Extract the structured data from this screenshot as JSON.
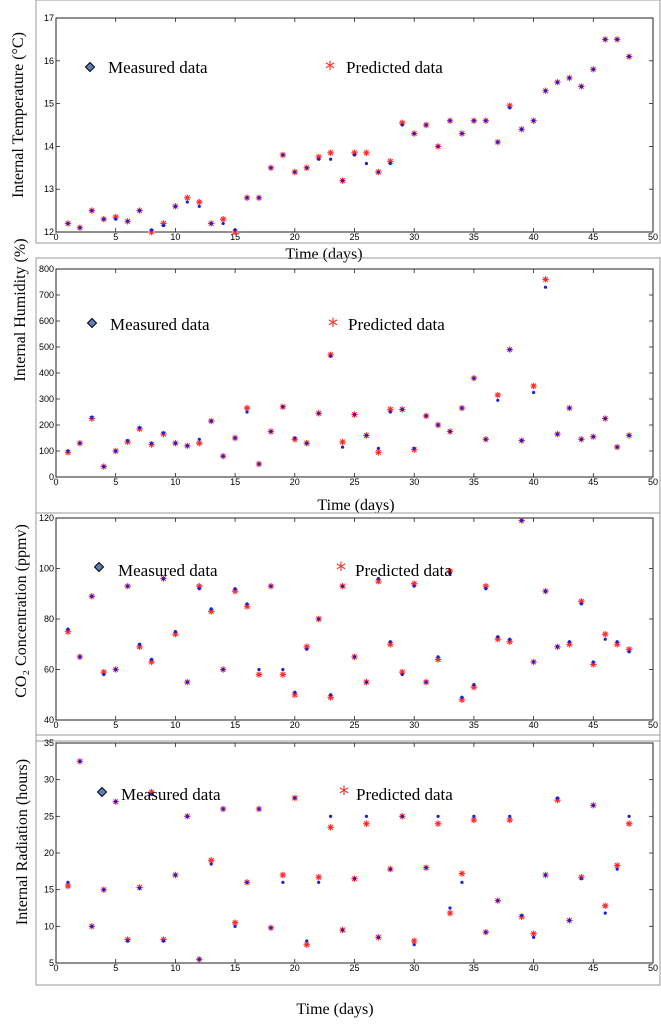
{
  "legend": {
    "measured_label": "Measured data",
    "predicted_label": "Predicted data",
    "measured_color": "#1f1fd6",
    "measured_marker_fill": "#5b7fb6",
    "predicted_color": "#ff2a2a"
  },
  "chart_data": [
    {
      "type": "scatter",
      "ylabel": "Internal Temperature (°C)",
      "xlabel": "Time (days)",
      "xlim": [
        0,
        50
      ],
      "ylim": [
        12,
        17
      ],
      "xticks": [
        0,
        5,
        10,
        15,
        20,
        25,
        30,
        35,
        40,
        45,
        50
      ],
      "yticks": [
        12,
        13,
        14,
        15,
        16,
        17
      ],
      "x": [
        1,
        2,
        3,
        4,
        5,
        6,
        7,
        8,
        9,
        10,
        11,
        12,
        13,
        14,
        15,
        16,
        17,
        18,
        19,
        20,
        21,
        22,
        23,
        24,
        25,
        26,
        27,
        28,
        29,
        30,
        31,
        32,
        33,
        34,
        35,
        36,
        37,
        38,
        39,
        40,
        41,
        42,
        43,
        44,
        45,
        46,
        47,
        48
      ],
      "series": [
        {
          "name": "Measured data",
          "values": [
            12.2,
            12.1,
            12.5,
            12.3,
            12.3,
            12.25,
            12.5,
            12.05,
            12.15,
            12.6,
            12.7,
            12.6,
            12.2,
            12.2,
            12.05,
            12.8,
            12.8,
            13.5,
            13.8,
            13.4,
            13.5,
            13.7,
            13.7,
            13.2,
            13.8,
            13.6,
            13.4,
            13.6,
            14.5,
            14.3,
            14.5,
            14.0,
            14.6,
            14.3,
            14.6,
            14.6,
            14.1,
            14.9,
            14.4,
            14.6,
            15.3,
            15.5,
            15.6,
            15.4,
            15.8,
            16.5,
            16.5,
            16.1
          ]
        },
        {
          "name": "Predicted data",
          "values": [
            12.2,
            12.1,
            12.5,
            12.3,
            12.35,
            12.25,
            12.5,
            12.0,
            12.2,
            12.6,
            12.8,
            12.7,
            12.2,
            12.3,
            12.0,
            12.8,
            12.8,
            13.5,
            13.8,
            13.4,
            13.5,
            13.75,
            13.85,
            13.2,
            13.85,
            13.85,
            13.4,
            13.65,
            14.55,
            14.3,
            14.5,
            14.0,
            14.6,
            14.3,
            14.6,
            14.6,
            14.1,
            14.95,
            14.4,
            14.6,
            15.3,
            15.5,
            15.6,
            15.4,
            15.8,
            16.5,
            16.5,
            16.1
          ]
        }
      ]
    },
    {
      "type": "scatter",
      "ylabel": "Internal Humidity (%)",
      "xlabel": "Time (days)",
      "xlim": [
        0,
        50
      ],
      "ylim": [
        0,
        800
      ],
      "xticks": [
        0,
        5,
        10,
        15,
        20,
        25,
        30,
        35,
        40,
        45,
        50
      ],
      "yticks": [
        0,
        100,
        200,
        300,
        400,
        500,
        600,
        700,
        800
      ],
      "x": [
        1,
        2,
        3,
        4,
        5,
        6,
        7,
        8,
        9,
        10,
        11,
        12,
        13,
        14,
        15,
        16,
        17,
        18,
        19,
        20,
        21,
        22,
        23,
        24,
        25,
        26,
        27,
        28,
        29,
        30,
        31,
        32,
        33,
        34,
        35,
        36,
        37,
        38,
        39,
        40,
        41,
        42,
        43,
        44,
        45,
        46,
        47,
        48
      ],
      "series": [
        {
          "name": "Measured data",
          "values": [
            100,
            130,
            230,
            40,
            100,
            140,
            190,
            130,
            170,
            130,
            120,
            145,
            215,
            80,
            150,
            250,
            50,
            175,
            270,
            150,
            130,
            245,
            465,
            115,
            240,
            160,
            110,
            250,
            260,
            110,
            235,
            200,
            175,
            265,
            380,
            145,
            295,
            490,
            140,
            325,
            730,
            165,
            265,
            145,
            155,
            225,
            115,
            160
          ]
        },
        {
          "name": "Predicted data",
          "values": [
            95,
            130,
            225,
            40,
            100,
            135,
            185,
            125,
            165,
            130,
            120,
            130,
            215,
            80,
            150,
            265,
            50,
            175,
            270,
            145,
            130,
            245,
            470,
            135,
            240,
            160,
            95,
            260,
            260,
            105,
            235,
            200,
            175,
            265,
            380,
            145,
            315,
            490,
            140,
            350,
            760,
            165,
            265,
            145,
            155,
            225,
            115,
            160
          ]
        }
      ]
    },
    {
      "type": "scatter",
      "ylabel": "CO₂ Concentration (ppmv)",
      "xlabel": "Time (days)",
      "xlim": [
        0,
        50
      ],
      "ylim": [
        40,
        120
      ],
      "xticks": [
        0,
        5,
        10,
        15,
        20,
        25,
        30,
        35,
        40,
        45,
        50
      ],
      "yticks": [
        40,
        60,
        80,
        100,
        120
      ],
      "x": [
        1,
        2,
        3,
        4,
        5,
        6,
        7,
        8,
        9,
        10,
        11,
        12,
        13,
        14,
        15,
        16,
        17,
        18,
        19,
        20,
        21,
        22,
        23,
        24,
        25,
        26,
        27,
        28,
        29,
        30,
        31,
        32,
        33,
        34,
        35,
        36,
        37,
        38,
        39,
        40,
        41,
        42,
        43,
        44,
        45,
        46,
        47,
        48
      ],
      "series": [
        {
          "name": "Measured data",
          "values": [
            76,
            65,
            89,
            58,
            60,
            93,
            70,
            64,
            96,
            75,
            55,
            92,
            84,
            60,
            92,
            86,
            60,
            93,
            60,
            51,
            68,
            80,
            50,
            93,
            65,
            55,
            96,
            71,
            58,
            93,
            55,
            65,
            98,
            49,
            54,
            92,
            73,
            72,
            119,
            63,
            91,
            69,
            71,
            86,
            63,
            72,
            71,
            67
          ]
        },
        {
          "name": "Predicted data",
          "values": [
            75,
            65,
            89,
            59,
            60,
            93,
            69,
            63,
            96,
            74,
            55,
            93,
            83,
            60,
            91,
            85,
            58,
            93,
            58,
            50,
            69,
            80,
            49,
            93,
            65,
            55,
            95,
            70,
            59,
            94,
            55,
            64,
            99,
            48,
            53,
            93,
            72,
            71,
            119,
            63,
            91,
            69,
            70,
            87,
            62,
            74,
            70,
            68
          ]
        }
      ]
    },
    {
      "type": "scatter",
      "ylabel": "Internal Radiation (hours)",
      "xlabel": "Time (days)",
      "xlim": [
        0,
        50
      ],
      "ylim": [
        5,
        35
      ],
      "xticks": [
        0,
        5,
        10,
        15,
        20,
        25,
        30,
        35,
        40,
        45,
        50
      ],
      "yticks": [
        5,
        10,
        15,
        20,
        25,
        30,
        35
      ],
      "x": [
        1,
        2,
        3,
        4,
        5,
        6,
        7,
        8,
        9,
        10,
        11,
        12,
        13,
        14,
        15,
        16,
        17,
        18,
        19,
        20,
        21,
        22,
        23,
        24,
        25,
        26,
        27,
        28,
        29,
        30,
        31,
        32,
        33,
        34,
        35,
        36,
        37,
        38,
        39,
        40,
        41,
        42,
        43,
        44,
        45,
        46,
        47,
        48
      ],
      "series": [
        {
          "name": "Measured data",
          "values": [
            16,
            32.5,
            10,
            15,
            27,
            8,
            15.2,
            28,
            8,
            17,
            25,
            5.5,
            18.5,
            26,
            10,
            16,
            26,
            9.8,
            16,
            27.5,
            8,
            16,
            25,
            9.5,
            16.5,
            25,
            8.5,
            17.8,
            25,
            7.5,
            18,
            25,
            12.5,
            16,
            25,
            9.2,
            13.5,
            25,
            11.5,
            8.5,
            17,
            27.5,
            10.8,
            16.5,
            26.5,
            11.8,
            17.8,
            25
          ]
        },
        {
          "name": "Predicted data",
          "values": [
            15.5,
            32.5,
            10,
            15,
            27,
            8.2,
            15.3,
            28.3,
            8.2,
            17,
            25,
            5.5,
            19,
            26,
            10.5,
            16,
            26,
            9.8,
            17,
            27.5,
            7.5,
            16.7,
            23.5,
            9.5,
            16.5,
            24,
            8.5,
            17.8,
            25,
            8,
            18,
            24,
            11.8,
            17.2,
            24.5,
            9.2,
            13.5,
            24.5,
            11.3,
            9,
            17,
            27.2,
            10.8,
            16.7,
            26.5,
            12.8,
            18.3,
            24
          ]
        }
      ]
    }
  ]
}
